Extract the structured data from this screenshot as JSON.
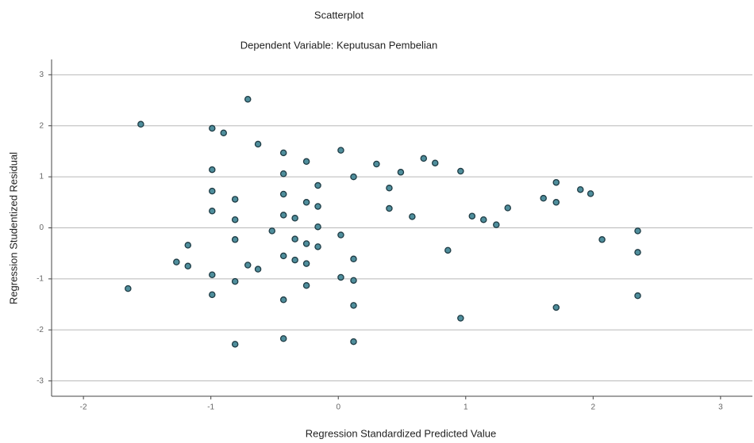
{
  "chart_data": {
    "type": "scatter",
    "title": "Scatterplot",
    "subtitle": "Dependent Variable: Keputusan Pembelian",
    "x_label": "Regression Standardized Predicted Value",
    "y_label": "Regression Studentized Residual",
    "x": [
      -1.55,
      -0.71,
      -0.99,
      -0.9,
      -0.63,
      -0.43,
      -0.25,
      0.02,
      -0.99,
      -0.43,
      0.12,
      0.3,
      0.49,
      0.67,
      0.76,
      0.96,
      -0.99,
      -0.81,
      -0.43,
      -0.16,
      0.4,
      -0.25,
      -0.16,
      -0.99,
      -0.43,
      -0.34,
      -0.81,
      0.4,
      0.58,
      1.05,
      1.14,
      1.24,
      1.33,
      1.61,
      1.71,
      1.71,
      1.9,
      1.98,
      -0.52,
      -0.16,
      0.02,
      -1.18,
      -0.81,
      -0.34,
      -0.25,
      -0.16,
      -0.43,
      -0.34,
      -0.25,
      0.12,
      0.86,
      2.07,
      2.35,
      2.35,
      -1.27,
      -1.18,
      -0.71,
      -0.63,
      -0.99,
      -0.81,
      -0.25,
      0.02,
      0.12,
      -1.65,
      -0.99,
      -0.43,
      0.12,
      1.71,
      2.35,
      0.96,
      -0.81,
      -0.43,
      0.12
    ],
    "values": [
      2.03,
      2.52,
      1.95,
      1.86,
      1.64,
      1.47,
      1.3,
      1.52,
      1.14,
      1.06,
      1.0,
      1.25,
      1.09,
      1.36,
      1.27,
      1.11,
      0.72,
      0.56,
      0.66,
      0.83,
      0.78,
      0.5,
      0.42,
      0.33,
      0.25,
      0.19,
      0.16,
      0.38,
      0.22,
      0.23,
      0.16,
      0.06,
      0.39,
      0.58,
      0.89,
      0.5,
      0.75,
      0.67,
      -0.06,
      0.02,
      -0.14,
      -0.34,
      -0.23,
      -0.22,
      -0.31,
      -0.37,
      -0.55,
      -0.63,
      -0.7,
      -0.61,
      -0.44,
      -0.23,
      -0.06,
      -0.48,
      -0.67,
      -0.75,
      -0.73,
      -0.81,
      -0.92,
      -1.05,
      -1.13,
      -0.97,
      -1.03,
      -1.19,
      -1.31,
      -1.41,
      -1.52,
      -1.56,
      -1.33,
      -1.77,
      -2.28,
      -2.17,
      -2.23
    ],
    "color": "#4f8e9c",
    "xlim": [
      -2.25,
      3.25
    ],
    "ylim": [
      -3.3,
      3.3
    ],
    "xticks": [
      -2,
      -1,
      0,
      1,
      2,
      3
    ],
    "yticks": [
      3,
      2,
      1,
      0,
      -1,
      -2,
      -3
    ],
    "grid": true
  }
}
